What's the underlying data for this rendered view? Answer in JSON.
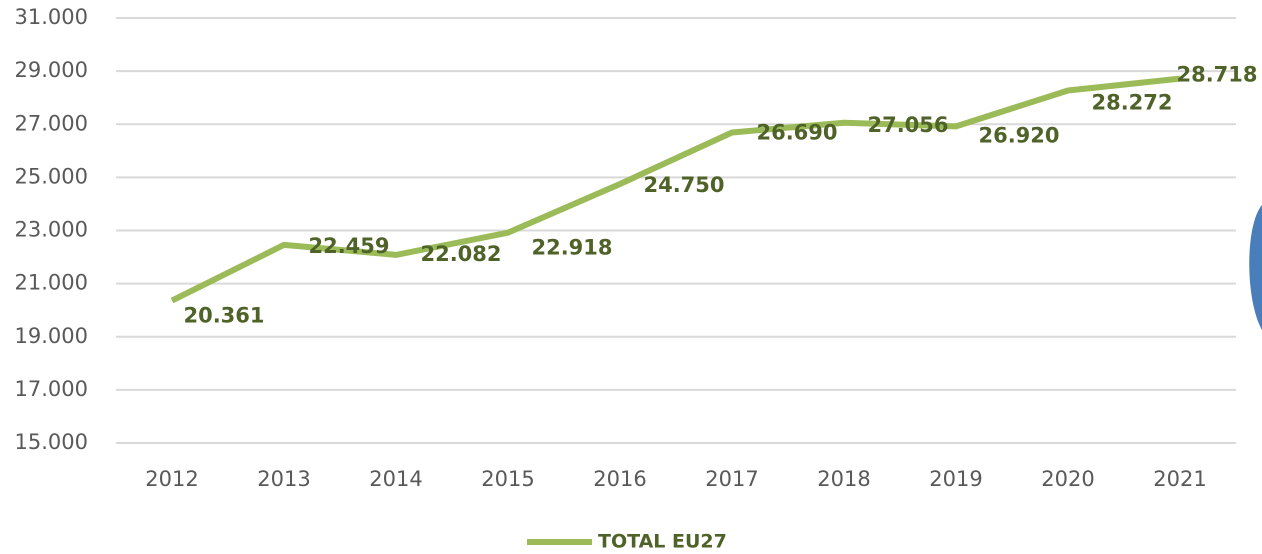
{
  "chart_data": {
    "type": "line",
    "categories": [
      "2012",
      "2013",
      "2014",
      "2015",
      "2016",
      "2017",
      "2018",
      "2019",
      "2020",
      "2021"
    ],
    "series": [
      {
        "name": "TOTAL EU27",
        "color": "#9bbb59",
        "values": [
          20361,
          22459,
          22082,
          22918,
          24750,
          26690,
          27056,
          26920,
          28272,
          28718
        ],
        "value_labels": [
          "20.361",
          "22.459",
          "22.082",
          "22.918",
          "24.750",
          "26.690",
          "27.056",
          "26.920",
          "28.272",
          "28.718"
        ]
      }
    ],
    "ylim": [
      15000,
      31000
    ],
    "yticks": [
      {
        "value": 15000,
        "label": "15.000"
      },
      {
        "value": 17000,
        "label": "17.000"
      },
      {
        "value": 19000,
        "label": "19.000"
      },
      {
        "value": 21000,
        "label": "21.000"
      },
      {
        "value": 23000,
        "label": "23.000"
      },
      {
        "value": 25000,
        "label": "25.000"
      },
      {
        "value": 27000,
        "label": "27.000"
      },
      {
        "value": 29000,
        "label": "29.000"
      },
      {
        "value": 31000,
        "label": "31.000"
      }
    ],
    "grid": true,
    "legend": "bottom"
  }
}
